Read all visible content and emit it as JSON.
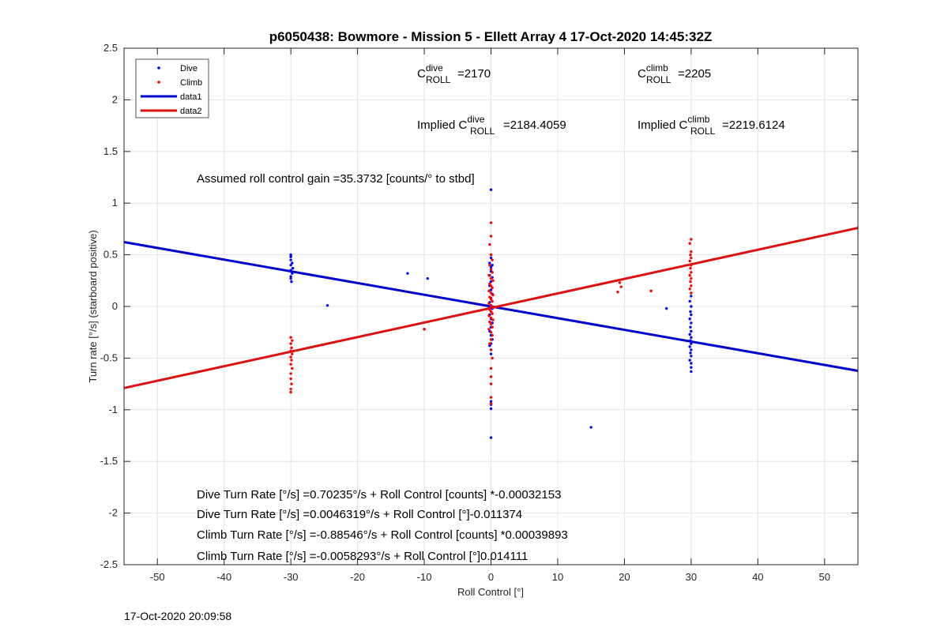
{
  "chart_data": {
    "type": "scatter",
    "title": "p6050438: Bowmore - Mission 5 - Ellett Array 4 17-Oct-2020 14:45:32Z",
    "xlabel": "Roll Control [°]",
    "ylabel": "Turn rate [°/s] (starboard positive)",
    "xlim": [
      -55,
      55
    ],
    "ylim": [
      -2.5,
      2.5
    ],
    "xticks": [
      -50,
      -40,
      -30,
      -20,
      -10,
      0,
      10,
      20,
      30,
      40,
      50
    ],
    "yticks": [
      -2.5,
      -2,
      -1.5,
      -1,
      -0.5,
      0,
      0.5,
      1,
      1.5,
      2,
      2.5
    ],
    "grid": true,
    "legend_position": "top-left",
    "series": [
      {
        "name": "Dive",
        "kind": "points",
        "color": "#0000ff",
        "points": [
          [
            -30,
            0.5
          ],
          [
            -30,
            0.48
          ],
          [
            -30,
            0.45
          ],
          [
            -29.8,
            0.42
          ],
          [
            -30,
            0.4
          ],
          [
            -29.7,
            0.37
          ],
          [
            -30,
            0.35
          ],
          [
            -29.8,
            0.32
          ],
          [
            -30,
            0.29
          ],
          [
            -30,
            0.27
          ],
          [
            -29.9,
            0.24
          ],
          [
            -24.5,
            0.01
          ],
          [
            -12.5,
            0.32
          ],
          [
            -9.5,
            0.27
          ],
          [
            -10,
            -0.22
          ],
          [
            0,
            1.13
          ],
          [
            0,
            0.5
          ],
          [
            0,
            0.47
          ],
          [
            -0.2,
            0.42
          ],
          [
            0.2,
            0.4
          ],
          [
            0,
            0.38
          ],
          [
            0,
            0.34
          ],
          [
            -0.2,
            0.3
          ],
          [
            0.2,
            0.28
          ],
          [
            0,
            0.24
          ],
          [
            -0.2,
            0.2
          ],
          [
            0,
            0.16
          ],
          [
            0.2,
            0.12
          ],
          [
            0,
            0.08
          ],
          [
            -0.2,
            0.04
          ],
          [
            0,
            0.01
          ],
          [
            0.2,
            -0.02
          ],
          [
            0,
            -0.05
          ],
          [
            -0.2,
            -0.08
          ],
          [
            0,
            -0.12
          ],
          [
            0.2,
            -0.16
          ],
          [
            0,
            -0.2
          ],
          [
            -0.2,
            -0.24
          ],
          [
            0,
            -0.28
          ],
          [
            0.2,
            -0.32
          ],
          [
            0,
            -0.36
          ],
          [
            -0.2,
            -0.38
          ],
          [
            0,
            -0.42
          ],
          [
            0,
            -0.46
          ],
          [
            0,
            -0.92
          ],
          [
            0,
            -0.95
          ],
          [
            0,
            -0.99
          ],
          [
            0,
            -1.27
          ],
          [
            15,
            -1.17
          ],
          [
            26.3,
            -0.02
          ],
          [
            30,
            0.1
          ],
          [
            29.8,
            0.05
          ],
          [
            30,
            0.0
          ],
          [
            29.9,
            -0.05
          ],
          [
            30,
            -0.08
          ],
          [
            29.8,
            -0.12
          ],
          [
            30,
            -0.16
          ],
          [
            29.9,
            -0.2
          ],
          [
            30,
            -0.24
          ],
          [
            29.8,
            -0.27
          ],
          [
            30,
            -0.3
          ],
          [
            29.9,
            -0.33
          ],
          [
            30,
            -0.36
          ],
          [
            29.8,
            -0.39
          ],
          [
            30,
            -0.42
          ],
          [
            29.9,
            -0.45
          ],
          [
            30,
            -0.48
          ],
          [
            29.8,
            -0.52
          ],
          [
            30,
            -0.55
          ],
          [
            30,
            -0.59
          ],
          [
            30,
            -0.63
          ]
        ]
      },
      {
        "name": "Climb",
        "kind": "points",
        "color": "#ff0000",
        "points": [
          [
            -30,
            -0.3
          ],
          [
            -29.8,
            -0.33
          ],
          [
            -30,
            -0.36
          ],
          [
            -29.9,
            -0.4
          ],
          [
            -30,
            -0.43
          ],
          [
            -29.8,
            -0.46
          ],
          [
            -30,
            -0.49
          ],
          [
            -29.9,
            -0.52
          ],
          [
            -30,
            -0.56
          ],
          [
            -29.8,
            -0.6
          ],
          [
            -30,
            -0.65
          ],
          [
            -30,
            -0.7
          ],
          [
            -29.9,
            -0.75
          ],
          [
            -30,
            -0.8
          ],
          [
            -30,
            -0.83
          ],
          [
            -10,
            -0.22
          ],
          [
            0,
            0.81
          ],
          [
            0,
            0.68
          ],
          [
            -0.2,
            0.6
          ],
          [
            0,
            0.5
          ],
          [
            0.2,
            0.45
          ],
          [
            -0.2,
            0.4
          ],
          [
            0,
            0.36
          ],
          [
            0.2,
            0.33
          ],
          [
            -0.3,
            0.3
          ],
          [
            0,
            0.27
          ],
          [
            0.3,
            0.25
          ],
          [
            -0.2,
            0.22
          ],
          [
            0,
            0.2
          ],
          [
            0.2,
            0.18
          ],
          [
            -0.3,
            0.15
          ],
          [
            0,
            0.13
          ],
          [
            0.3,
            0.11
          ],
          [
            -0.2,
            0.09
          ],
          [
            0,
            0.07
          ],
          [
            0.2,
            0.05
          ],
          [
            -0.3,
            0.03
          ],
          [
            0,
            0.01
          ],
          [
            0.3,
            -0.01
          ],
          [
            -0.2,
            -0.03
          ],
          [
            0,
            -0.05
          ],
          [
            0.2,
            -0.07
          ],
          [
            -0.3,
            -0.09
          ],
          [
            0,
            -0.11
          ],
          [
            0.3,
            -0.13
          ],
          [
            -0.2,
            -0.15
          ],
          [
            0,
            -0.17
          ],
          [
            0.2,
            -0.2
          ],
          [
            -0.3,
            -0.22
          ],
          [
            0,
            -0.25
          ],
          [
            0.2,
            -0.28
          ],
          [
            0,
            -0.32
          ],
          [
            -0.2,
            -0.36
          ],
          [
            0,
            -0.42
          ],
          [
            0.2,
            -0.5
          ],
          [
            0,
            -0.6
          ],
          [
            0,
            -0.68
          ],
          [
            0,
            -0.75
          ],
          [
            0,
            -0.88
          ],
          [
            0,
            -0.94
          ],
          [
            19.3,
            0.23
          ],
          [
            19.5,
            0.19
          ],
          [
            19,
            0.14
          ],
          [
            24,
            0.15
          ],
          [
            30,
            0.65
          ],
          [
            29.8,
            0.61
          ],
          [
            30,
            0.53
          ],
          [
            29.9,
            0.5
          ],
          [
            30,
            0.47
          ],
          [
            29.8,
            0.44
          ],
          [
            30,
            0.4
          ],
          [
            29.9,
            0.37
          ],
          [
            30,
            0.33
          ],
          [
            29.8,
            0.3
          ],
          [
            30,
            0.27
          ],
          [
            29.9,
            0.24
          ],
          [
            30,
            0.2
          ],
          [
            29.8,
            0.17
          ],
          [
            30,
            0.13
          ]
        ]
      },
      {
        "name": "data1",
        "kind": "line",
        "color": "#0000cc",
        "x": [
          -55,
          55
        ],
        "y": [
          0.623,
          -0.623
        ]
      },
      {
        "name": "data2",
        "kind": "line",
        "color": "#dd1111",
        "x": [
          -55,
          55
        ],
        "y": [
          -0.79,
          0.76
        ]
      }
    ],
    "annotations": {
      "c_dive": {
        "base": "C",
        "sup": "dive",
        "sub": "ROLL",
        "value": "=2170"
      },
      "c_climb": {
        "base": "C",
        "sup": "climb",
        "sub": "ROLL",
        "value": "=2205"
      },
      "implied_dive": {
        "prefix": "Implied C",
        "sup": "dive",
        "sub": "ROLL",
        "value": "=2184.4059"
      },
      "implied_climb": {
        "prefix": "Implied C",
        "sup": "climb",
        "sub": "ROLL",
        "value": "=2219.6124"
      },
      "gain": "Assumed roll control gain =35.3732 [counts/° to stbd]",
      "equations": [
        "Dive Turn Rate [°/s] =0.70235°/s + Roll Control [counts] *-0.00032153",
        "Dive Turn Rate [°/s] =0.0046319°/s + Roll Control [°]-0.011374",
        "Climb Turn Rate [°/s] =-0.88546°/s + Roll Control [counts] *0.00039893",
        "Climb Turn Rate [°/s] =-0.0058293°/s + Roll Control [°]0.014111"
      ]
    }
  },
  "footer": {
    "timestamp": "17-Oct-2020 20:09:58"
  }
}
